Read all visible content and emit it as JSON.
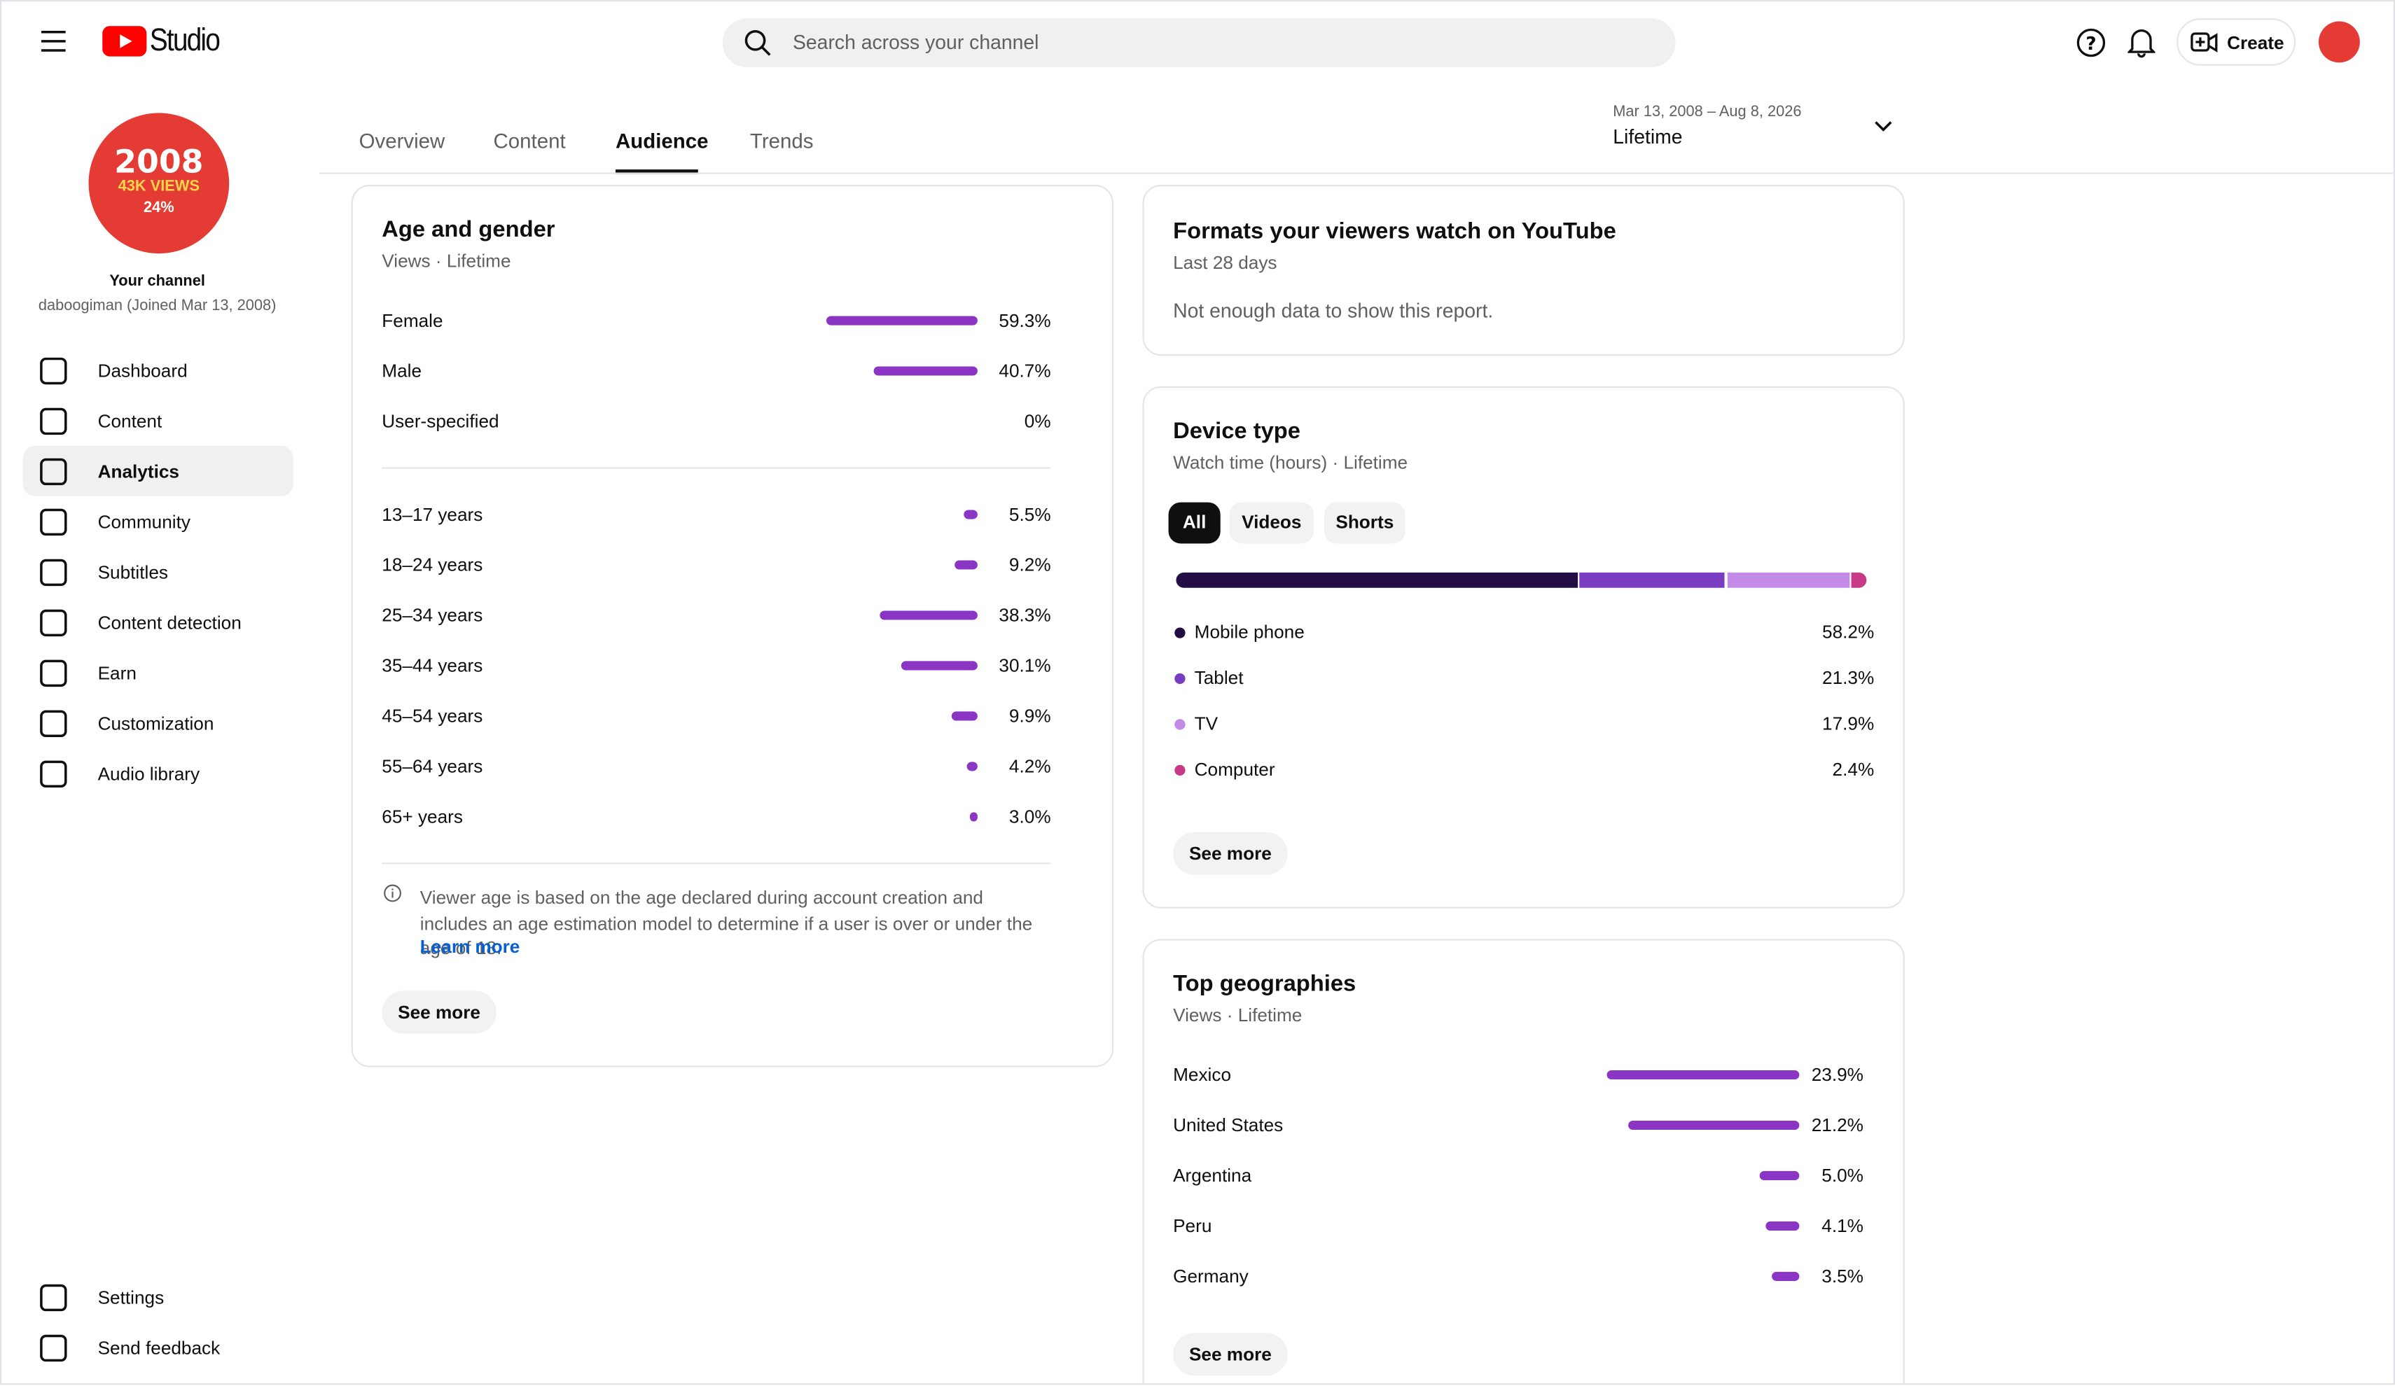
{
  "header": {
    "logo": "Studio",
    "search_placeholder": "Search across your channel",
    "create": "Create"
  },
  "sidebar": {
    "avatar": {
      "line1": "2008",
      "line2": "43K VIEWS",
      "line3": "24%"
    },
    "channel_label": "Your channel",
    "channel_info": "daboogiman (Joined Mar 13, 2008)",
    "nav": [
      "Dashboard",
      "Content",
      "Analytics",
      "Community",
      "Subtitles",
      "Content detection",
      "Earn",
      "Customization",
      "Audio library"
    ],
    "bottom_nav": [
      "Settings",
      "Send feedback"
    ]
  },
  "tabs": [
    "Overview",
    "Content",
    "Audience",
    "Trends"
  ],
  "date_range": {
    "range": "Mar 13, 2008 – Aug 8, 2026",
    "label": "Lifetime"
  },
  "age_gender": {
    "title": "Age and gender",
    "subtitle": "Views · Lifetime",
    "bar_color": "#8a35c4",
    "gender": [
      {
        "label": "Female",
        "value": 59.3,
        "value_label": "59.3%"
      },
      {
        "label": "Male",
        "value": 40.7,
        "value_label": "40.7%"
      },
      {
        "label": "User-specified",
        "value": 0,
        "value_label": "0%"
      }
    ],
    "age": [
      {
        "label": "13–17 years",
        "value": 5.5,
        "value_label": "5.5%"
      },
      {
        "label": "18–24 years",
        "value": 9.2,
        "value_label": "9.2%"
      },
      {
        "label": "25–34 years",
        "value": 38.3,
        "value_label": "38.3%"
      },
      {
        "label": "35–44 years",
        "value": 30.1,
        "value_label": "30.1%"
      },
      {
        "label": "45–54 years",
        "value": 9.9,
        "value_label": "9.9%"
      },
      {
        "label": "55–64 years",
        "value": 4.2,
        "value_label": "4.2%"
      },
      {
        "label": "65+ years",
        "value": 3.0,
        "value_label": "3.0%"
      }
    ],
    "note": "Viewer age is based on the age declared during account creation and includes an age estimation model to determine if a user is over or under the age of 18.",
    "learn_more": "Learn more",
    "see_more": "See more"
  },
  "formats": {
    "title": "Formats your viewers watch on YouTube",
    "subtitle": "Last 28 days",
    "message": "Not enough data to show this report."
  },
  "device": {
    "title": "Device type",
    "subtitle": "Watch time (hours) · Lifetime",
    "filters": [
      "All",
      "Videos",
      "Shorts"
    ],
    "items": [
      {
        "label": "Mobile phone",
        "value": 58.2,
        "value_label": "58.2%",
        "color": "#230d45"
      },
      {
        "label": "Tablet",
        "value": 21.3,
        "value_label": "21.3%",
        "color": "#7a3cc0"
      },
      {
        "label": "TV",
        "value": 17.9,
        "value_label": "17.9%",
        "color": "#c48ae8"
      },
      {
        "label": "Computer",
        "value": 2.4,
        "value_label": "2.4%",
        "color": "#c63a86"
      }
    ],
    "see_more": "See more"
  },
  "geographies": {
    "title": "Top geographies",
    "subtitle": "Views · Lifetime",
    "bar_color": "#8a35c4",
    "items": [
      {
        "label": "Mexico",
        "value": 23.9,
        "value_label": "23.9%"
      },
      {
        "label": "United States",
        "value": 21.2,
        "value_label": "21.2%"
      },
      {
        "label": "Argentina",
        "value": 5.0,
        "value_label": "5.0%"
      },
      {
        "label": "Peru",
        "value": 4.1,
        "value_label": "4.1%"
      },
      {
        "label": "Germany",
        "value": 3.5,
        "value_label": "3.5%"
      }
    ],
    "see_more": "See more"
  }
}
